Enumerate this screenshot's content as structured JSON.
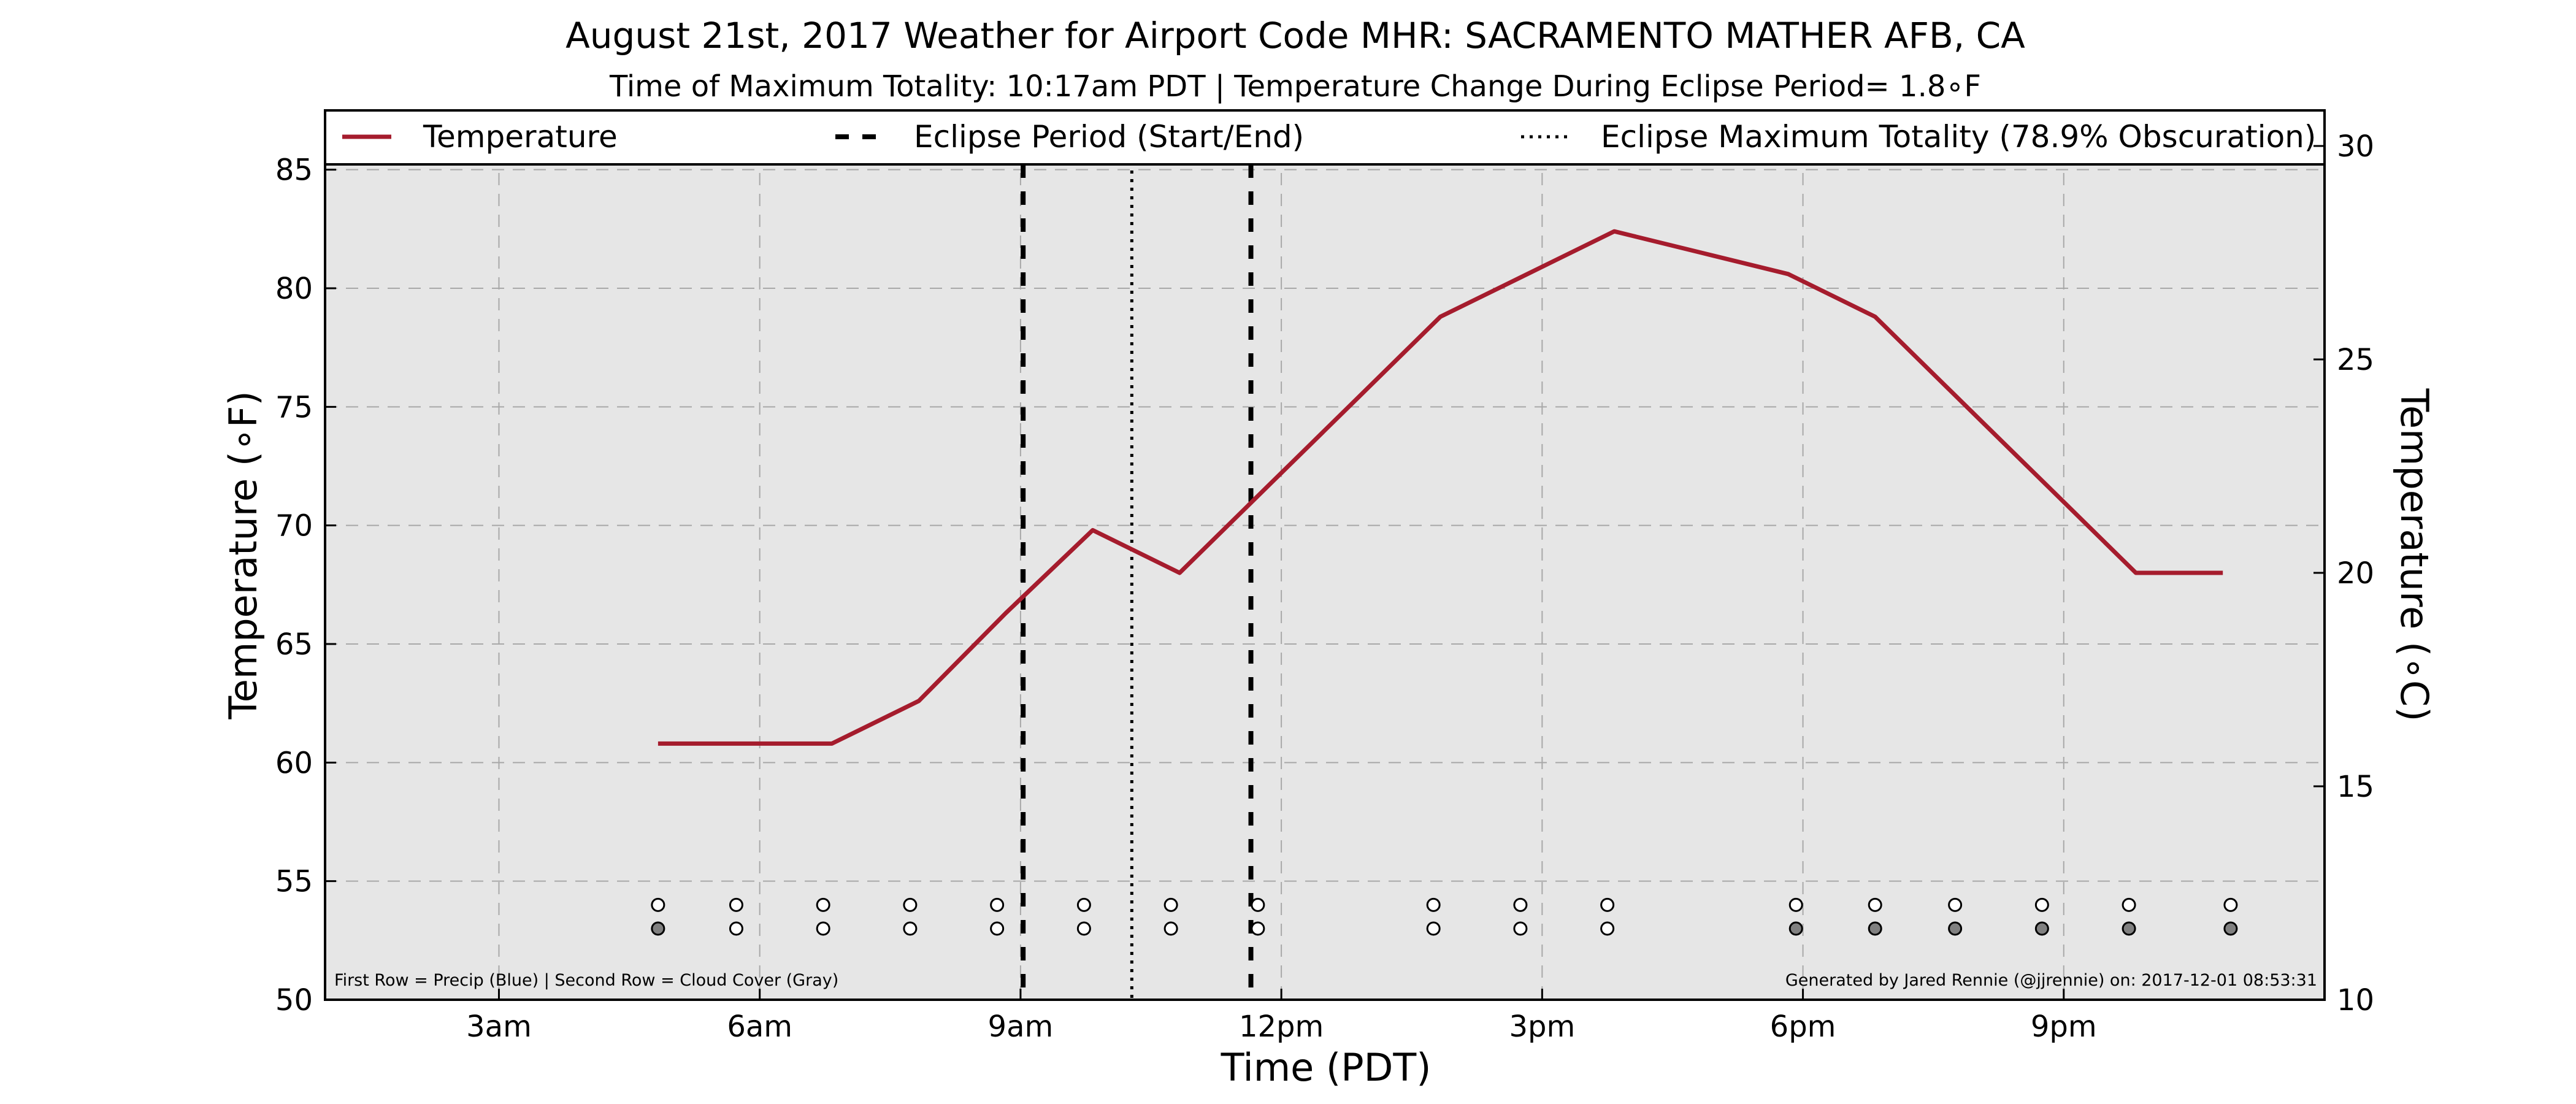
{
  "chart_data": {
    "type": "line",
    "title": "August 21st, 2017 Weather for Airport Code MHR: SACRAMENTO MATHER AFB, CA",
    "subtitle": "Time of Maximum Totality: 10:17am PDT | Temperature Change During Eclipse Period= 1.8∘F",
    "xlabel": "Time (PDT)",
    "ylabel": "Temperature (∘F)",
    "ylabel_right": "Temperature (∘C)",
    "xlim": [
      1.0,
      24.0
    ],
    "ylim": [
      50,
      87.5
    ],
    "ylim_right": [
      10,
      30.8333
    ],
    "x_ticks": [
      {
        "value": 3,
        "label": "3am"
      },
      {
        "value": 6,
        "label": "6am"
      },
      {
        "value": 9,
        "label": "9am"
      },
      {
        "value": 12,
        "label": "12pm"
      },
      {
        "value": 15,
        "label": "3pm"
      },
      {
        "value": 18,
        "label": "6pm"
      },
      {
        "value": 21,
        "label": "9pm"
      }
    ],
    "y_ticks": [
      50,
      55,
      60,
      65,
      70,
      75,
      80,
      85
    ],
    "y_ticks_right": [
      10,
      15,
      20,
      25,
      30
    ],
    "grid": true,
    "legend_position": "top",
    "series": [
      {
        "name": "Temperature",
        "color": "#a51c2d",
        "x": [
          4.83,
          5.83,
          6.83,
          7.83,
          8.83,
          9.83,
          10.83,
          11.83,
          12.83,
          13.83,
          14.83,
          15.83,
          16.83,
          17.83,
          18.83,
          19.83,
          20.83,
          21.83,
          22.83
        ],
        "y": [
          60.8,
          60.8,
          60.8,
          62.6,
          66.3,
          69.8,
          68.0,
          71.6,
          75.2,
          78.8,
          80.6,
          82.4,
          81.5,
          80.6,
          78.8,
          75.2,
          71.6,
          68.0,
          68.0
        ]
      }
    ],
    "eclipse_start": 9.03,
    "eclipse_max": 10.28,
    "eclipse_end": 11.65,
    "legend": [
      {
        "label": "Temperature",
        "style": "solid",
        "color": "#a51c2d"
      },
      {
        "label": "Eclipse Period (Start/End)",
        "style": "dashed",
        "color": "#000000"
      },
      {
        "label": "Eclipse Maximum Totality (78.9% Obscuration)",
        "style": "dotted",
        "color": "#000000"
      }
    ],
    "precip_row": {
      "y": 54.0,
      "x": [
        4.83,
        5.73,
        6.73,
        7.73,
        8.73,
        9.73,
        10.73,
        11.73,
        13.75,
        14.75,
        15.75,
        17.92,
        18.83,
        19.75,
        20.75,
        21.75,
        22.92
      ],
      "filled": [
        false,
        false,
        false,
        false,
        false,
        false,
        false,
        false,
        false,
        false,
        false,
        false,
        false,
        false,
        false,
        false,
        false
      ]
    },
    "cloud_row": {
      "y": 53.0,
      "x": [
        4.83,
        5.73,
        6.73,
        7.73,
        8.73,
        9.73,
        10.73,
        11.73,
        13.75,
        14.75,
        15.75,
        17.92,
        18.83,
        19.75,
        20.75,
        21.75,
        22.92
      ],
      "filled": [
        true,
        false,
        false,
        false,
        false,
        false,
        false,
        false,
        false,
        false,
        false,
        true,
        true,
        true,
        true,
        true,
        true
      ]
    },
    "annotation_left": "First Row = Precip (Blue) | Second Row = Cloud Cover (Gray)",
    "annotation_right": "Generated by Jared Rennie (@jjrennie) on: 2017-12-01 08:53:31",
    "colors": {
      "plot_background": "#e6e6e6",
      "grid": "#a8a8a8",
      "cloud_fill": "#808080",
      "marker_empty": "#ffffff"
    }
  }
}
